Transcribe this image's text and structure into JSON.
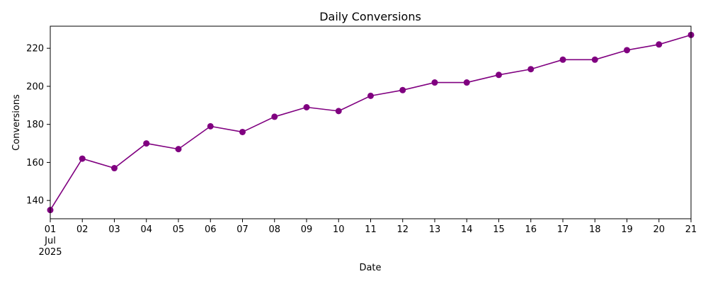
{
  "chart_data": {
    "type": "line",
    "title": "Daily Conversions",
    "xlabel": "Date",
    "ylabel": "Conversions",
    "x_month_label": "Jul",
    "x_year_label": "2025",
    "x": [
      "2025-07-01",
      "2025-07-02",
      "2025-07-03",
      "2025-07-04",
      "2025-07-05",
      "2025-07-06",
      "2025-07-07",
      "2025-07-08",
      "2025-07-09",
      "2025-07-10",
      "2025-07-11",
      "2025-07-12",
      "2025-07-13",
      "2025-07-14",
      "2025-07-15",
      "2025-07-16",
      "2025-07-17",
      "2025-07-18",
      "2025-07-19",
      "2025-07-20",
      "2025-07-21"
    ],
    "x_tick_labels": [
      "01",
      "02",
      "03",
      "04",
      "05",
      "06",
      "07",
      "08",
      "09",
      "10",
      "11",
      "12",
      "13",
      "14",
      "15",
      "16",
      "17",
      "18",
      "19",
      "20",
      "21"
    ],
    "values": [
      135,
      162,
      157,
      170,
      167,
      179,
      176,
      184,
      189,
      187,
      195,
      198,
      202,
      202,
      206,
      209,
      214,
      214,
      219,
      222,
      227
    ],
    "ylim": [
      130.4,
      231.6
    ],
    "yticks": [
      140,
      160,
      180,
      200,
      220
    ],
    "grid": false,
    "line_color": "#800080",
    "marker_color": "#800080"
  }
}
